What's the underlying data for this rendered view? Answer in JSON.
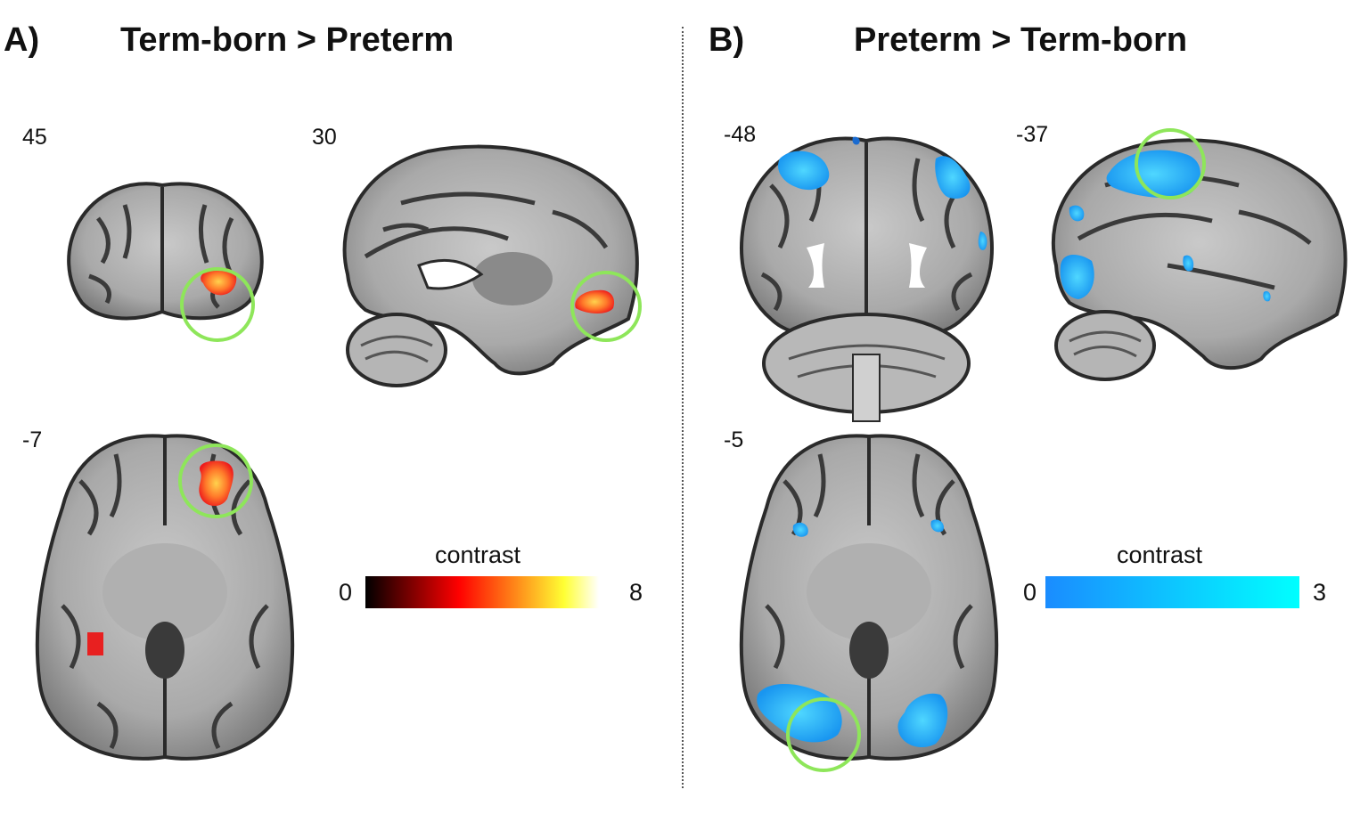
{
  "panel_a": {
    "letter": "A)",
    "title": "Term-born > Preterm",
    "slices": {
      "coronal": "45",
      "sagittal": "30",
      "axial": "-7"
    },
    "colorbar": {
      "label": "contrast",
      "min": "0",
      "max": "8",
      "colors": [
        "#000000",
        "#ff0000",
        "#ff8c1a",
        "#ffff33",
        "#ffffff"
      ]
    }
  },
  "panel_b": {
    "letter": "B)",
    "title": "Preterm > Term-born",
    "slices": {
      "coronal": "-48",
      "sagittal": "-37",
      "axial": "-5"
    },
    "colorbar": {
      "label": "contrast",
      "min": "0",
      "max": "3",
      "colors": [
        "#1a8cff",
        "#00ffff"
      ]
    }
  },
  "highlight_color": "#8ee65a"
}
